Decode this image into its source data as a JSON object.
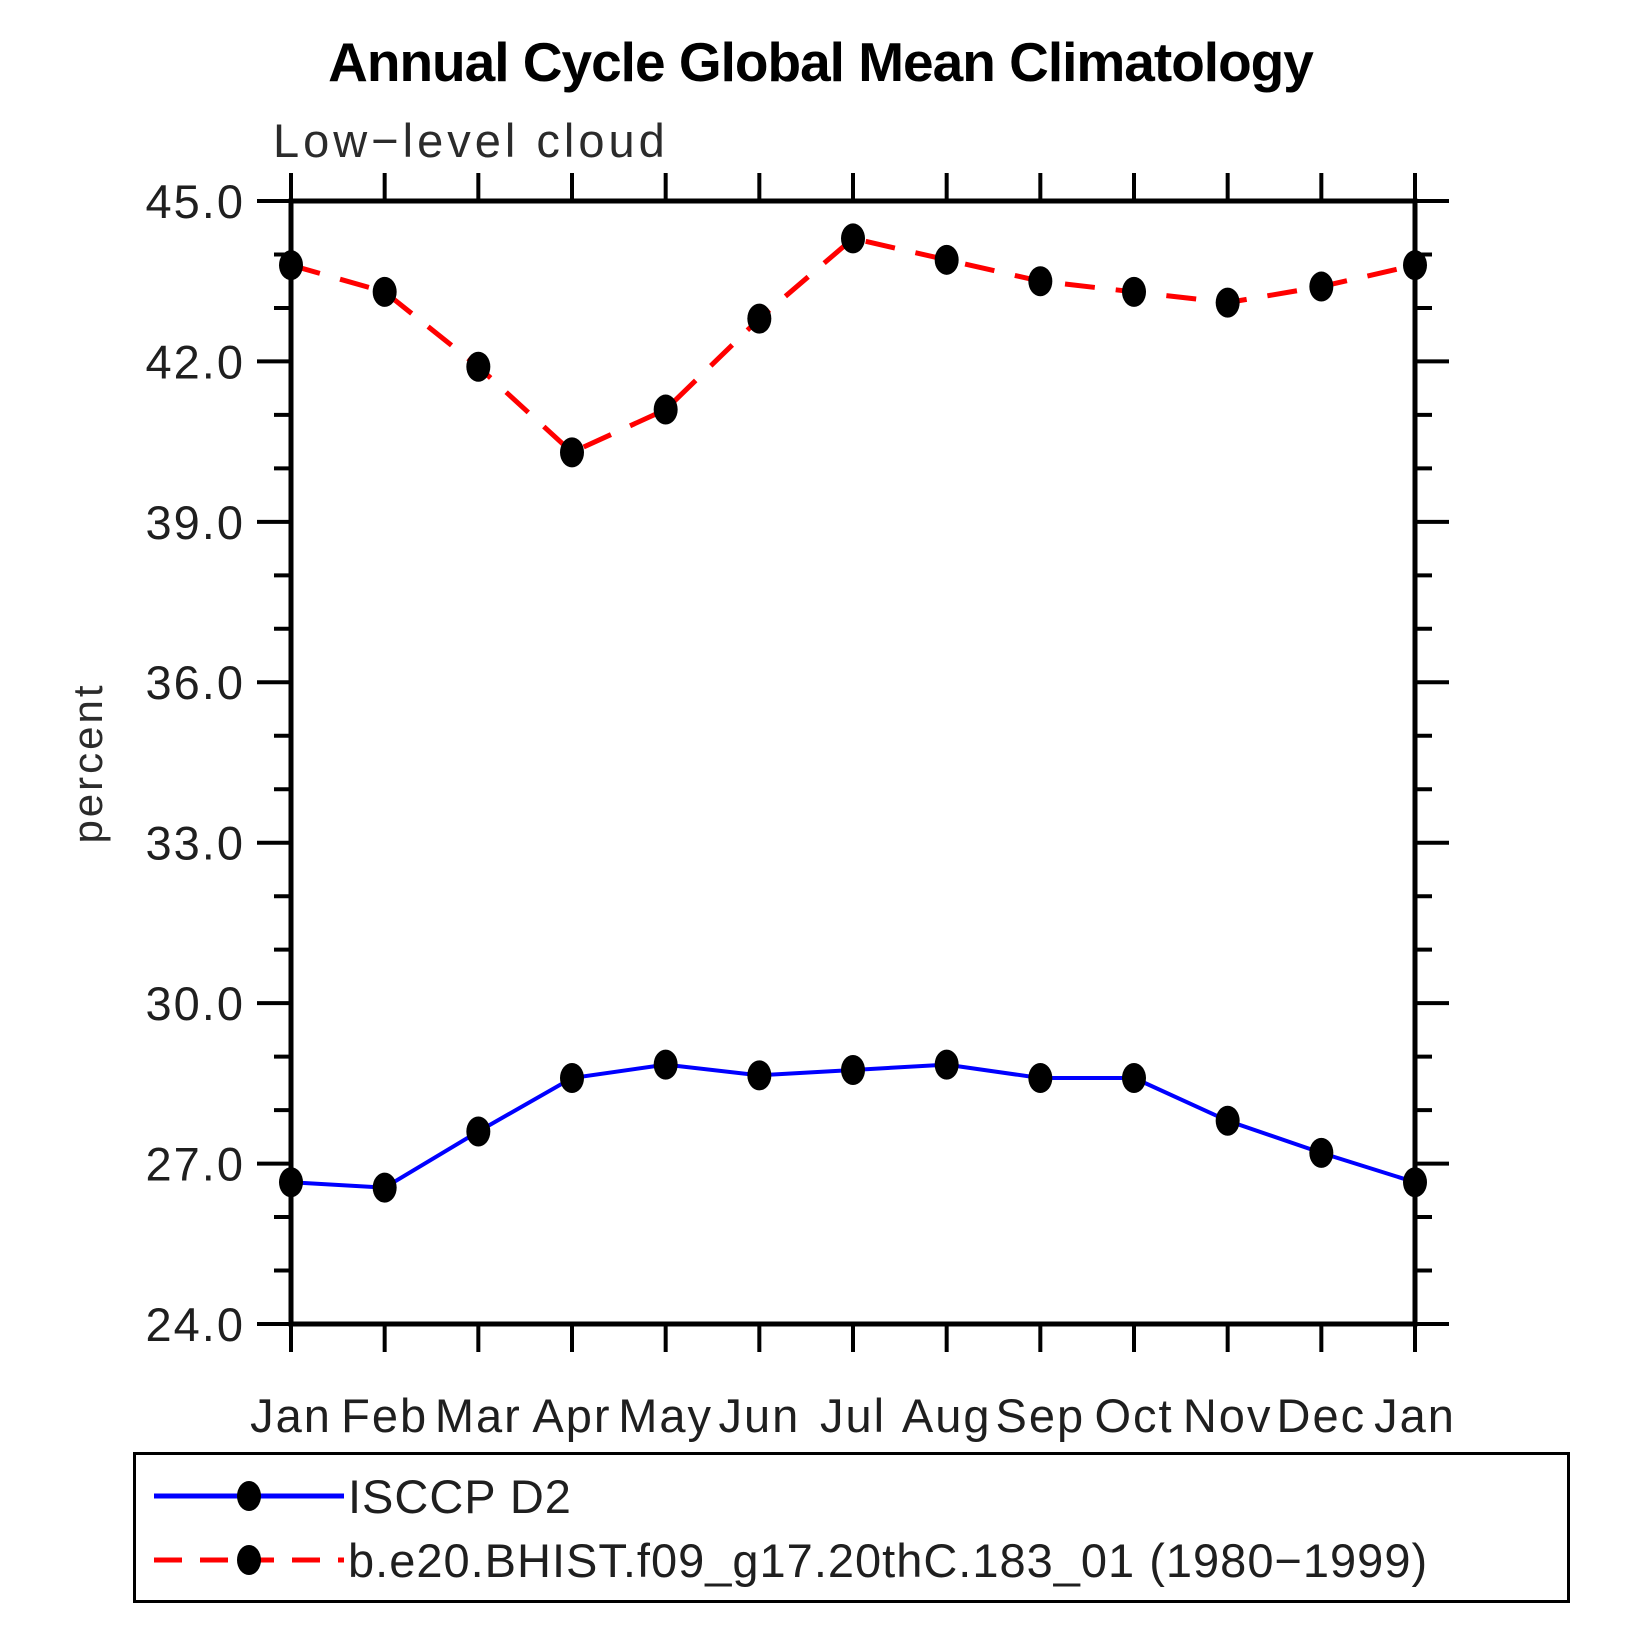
{
  "header": {
    "title": "Annual Cycle Global Mean Climatology",
    "subtitle": "Low−level cloud"
  },
  "chart_data": {
    "type": "line",
    "title": "Annual Cycle Global Mean Climatology",
    "subtitle": "Low−level cloud",
    "ylabel": "percent",
    "xlabel": "",
    "categories": [
      "Jan",
      "Feb",
      "Mar",
      "Apr",
      "May",
      "Jun",
      "Jul",
      "Aug",
      "Sep",
      "Oct",
      "Nov",
      "Dec",
      "Jan"
    ],
    "series": [
      {
        "name": "ISCCP D2",
        "color": "#0000ff",
        "line_style": "solid",
        "marker": "black-filled-dot",
        "values": [
          26.65,
          26.55,
          27.6,
          28.6,
          28.85,
          28.65,
          28.75,
          28.85,
          28.6,
          28.6,
          27.8,
          27.2,
          26.65
        ]
      },
      {
        "name": "b.e20.BHIST.f09_g17.20thC.183_01 (1980−1999)",
        "color": "#ff0000",
        "line_style": "dashed",
        "marker": "black-filled-dot",
        "values": [
          43.8,
          43.3,
          41.9,
          40.3,
          41.1,
          42.8,
          44.3,
          43.9,
          43.5,
          43.3,
          43.1,
          43.4,
          43.8
        ]
      }
    ],
    "ylim": [
      24.0,
      45.0
    ],
    "yticks_major": [
      24,
      27,
      30,
      33,
      36,
      39,
      42,
      45
    ],
    "ytick_labels": [
      "24.0",
      "27.0",
      "30.0",
      "33.0",
      "36.0",
      "39.0",
      "42.0",
      "45.0"
    ],
    "yticks_minor_step": 1,
    "grid": false,
    "tick_direction": "out",
    "legend_position": "bottom-left-box",
    "axis_color": "#000000",
    "marker_color": "#000000"
  }
}
